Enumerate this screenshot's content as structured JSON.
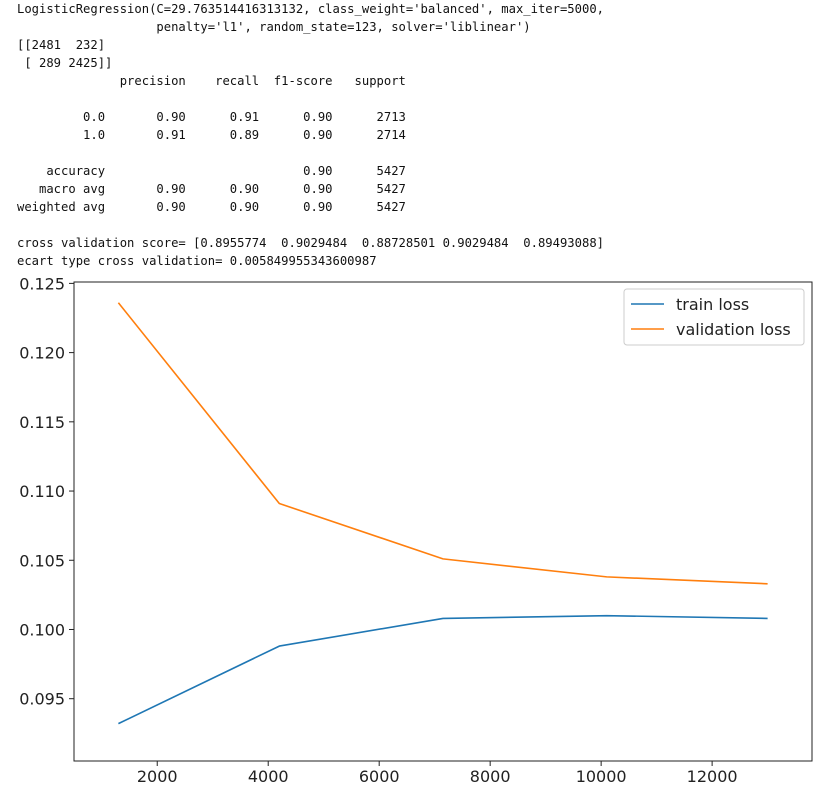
{
  "console": {
    "lines": [
      "LogisticRegression(C=29.763514416313132, class_weight='balanced', max_iter=5000,",
      "                   penalty='l1', random_state=123, solver='liblinear')",
      "[[2481  232]",
      " [ 289 2425]]",
      "              precision    recall  f1-score   support",
      "",
      "         0.0       0.90      0.91      0.90      2713",
      "         1.0       0.91      0.89      0.90      2714",
      "",
      "    accuracy                           0.90      5427",
      "   macro avg       0.90      0.90      0.90      5427",
      "weighted avg       0.90      0.90      0.90      5427",
      "",
      "cross validation score= [0.8955774  0.9029484  0.88728501 0.9029484  0.89493088]",
      "ecart type cross validation= 0.005849955343600987"
    ]
  },
  "chart_data": {
    "type": "line",
    "title": "",
    "xlabel": "",
    "ylabel": "",
    "x": [
      1300,
      4200,
      7150,
      10100,
      13000
    ],
    "series": [
      {
        "name": "train loss",
        "color": "#1f77b4",
        "values": [
          0.0932,
          0.0988,
          0.1008,
          0.101,
          0.1008
        ]
      },
      {
        "name": "validation loss",
        "color": "#ff7f0e",
        "values": [
          0.1236,
          0.1091,
          0.1051,
          0.1038,
          0.1033
        ]
      }
    ],
    "xlim": [
      500,
      13800
    ],
    "ylim": [
      0.0905,
      0.1251
    ],
    "xticks": [
      2000,
      4000,
      6000,
      8000,
      10000,
      12000
    ],
    "xtick_labels": [
      "2000",
      "4000",
      "6000",
      "8000",
      "10000",
      "12000"
    ],
    "yticks": [
      0.095,
      0.1,
      0.105,
      0.11,
      0.115,
      0.12,
      0.125
    ],
    "ytick_labels": [
      "0.095",
      "0.100",
      "0.105",
      "0.110",
      "0.115",
      "0.120",
      "0.125"
    ],
    "grid": false,
    "legend_position": "top-right"
  }
}
